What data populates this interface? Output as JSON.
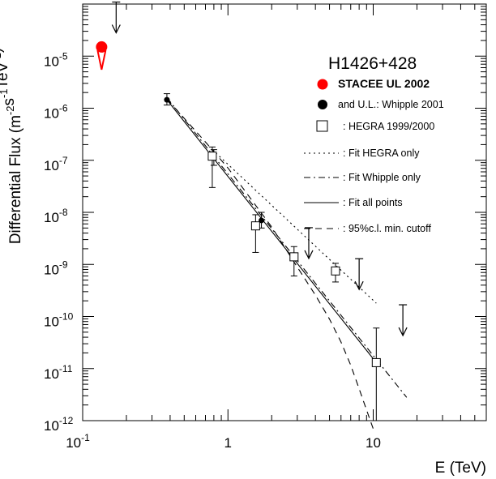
{
  "chart_data": {
    "type": "scatter",
    "title": "H1426+428",
    "xlabel": "E (TeV)",
    "ylabel_main": "Differential Flux (m",
    "ylabel_units": [
      {
        "base": "",
        "exp": "-2"
      },
      {
        "base": "s",
        "exp": "-1"
      },
      {
        "base": "TeV",
        "exp": "-1"
      }
    ],
    "ylabel_close": ")",
    "x_scale": "log",
    "y_scale": "log",
    "xlim": [
      0.1,
      60
    ],
    "ylim": [
      1e-12,
      0.0001
    ],
    "x_ticks": [
      {
        "value": 0.1,
        "base": "10",
        "exp": "-1"
      },
      {
        "value": 1,
        "base": "1",
        "exp": ""
      },
      {
        "value": 10,
        "base": "10",
        "exp": ""
      }
    ],
    "y_ticks": [
      {
        "value": 1e-12,
        "base": "10",
        "exp": "-12"
      },
      {
        "value": 1e-11,
        "base": "10",
        "exp": "-11"
      },
      {
        "value": 1e-10,
        "base": "10",
        "exp": "-10"
      },
      {
        "value": 1e-09,
        "base": "10",
        "exp": "-9"
      },
      {
        "value": 1e-08,
        "base": "10",
        "exp": "-8"
      },
      {
        "value": 1e-07,
        "base": "10",
        "exp": "-7"
      },
      {
        "value": 1e-06,
        "base": "10",
        "exp": "-6"
      },
      {
        "value": 1e-05,
        "base": "10",
        "exp": "-5"
      }
    ],
    "legend": {
      "placement": "top-right",
      "entries": [
        {
          "label": "STACEE UL 2002",
          "style": "red-dot",
          "bold": true
        },
        {
          "label": "and U.L.: Whipple 2001",
          "style": "black-dot"
        },
        {
          "label": ": HEGRA 1999/2000",
          "style": "open-square"
        },
        {
          "label": ": Fit HEGRA only",
          "style": "dotted"
        },
        {
          "label": ": Fit Whipple only",
          "style": "dashdot"
        },
        {
          "label": ": Fit all points",
          "style": "solid"
        },
        {
          "label": ": 95%c.l. min. cutoff",
          "style": "dashed"
        }
      ]
    },
    "series": [
      {
        "name": "STACEE UL 2002",
        "color": "#ff0000",
        "marker": "dot",
        "points": [
          {
            "x": 0.135,
            "y": 1.5e-05
          }
        ],
        "upper_limits": [
          {
            "x": 0.135,
            "y": 5.5e-06
          }
        ]
      },
      {
        "name": "and U.L.: Whipple 2001",
        "color": "#000000",
        "marker": "dot",
        "points": [
          {
            "x": 0.38,
            "y": 1.45e-06,
            "ylo": 1.15e-06,
            "yhi": 1.9e-06
          },
          {
            "x": 0.8,
            "y": 1.15e-07,
            "ylo": 8e-08,
            "yhi": 1.6e-07
          },
          {
            "x": 1.7,
            "y": 7e-09,
            "ylo": 5e-09,
            "yhi": 1e-08
          }
        ],
        "upper_limits": [
          {
            "x": 0.17,
            "y": 2.8e-05
          },
          {
            "x": 3.6,
            "y": 1.3e-09
          },
          {
            "x": 8.0,
            "y": 3.3e-10
          },
          {
            "x": 16.0,
            "y": 4.3e-11
          }
        ]
      },
      {
        "name": "HEGRA 1999/2000",
        "color": "#000000",
        "marker": "open-square",
        "points": [
          {
            "x": 0.78,
            "y": 1.2e-07,
            "ylo": 3e-08,
            "yhi": 1.8e-07
          },
          {
            "x": 1.55,
            "y": 5.5e-09,
            "ylo": 1.7e-09,
            "yhi": 9e-09
          },
          {
            "x": 2.85,
            "y": 1.4e-09,
            "ylo": 6e-10,
            "yhi": 2.2e-09
          },
          {
            "x": 5.5,
            "y": 7.5e-10,
            "ylo": 4.6e-10,
            "yhi": 1.05e-09
          },
          {
            "x": 10.5,
            "y": 1.3e-11,
            "ylo": 1e-12,
            "yhi": 6e-11
          }
        ]
      }
    ],
    "fits": [
      {
        "label": "Fit HEGRA only",
        "style": "dotted",
        "x": [
          0.78,
          10.5
        ],
        "y": [
          1.6e-07,
          1.8e-10
        ]
      },
      {
        "label": "Fit Whipple only",
        "style": "dashdot",
        "x": [
          0.38,
          17
        ],
        "y": [
          1.6e-06,
          2.8e-12
        ]
      },
      {
        "label": "Fit all points",
        "style": "solid",
        "x": [
          0.38,
          10.5
        ],
        "y": [
          1.45e-06,
          1.3e-11
        ]
      },
      {
        "label": "95%c.l. min. cutoff",
        "style": "dashed",
        "x": [
          0.38,
          0.7,
          1.0,
          1.5,
          2.0,
          3.0,
          4.0,
          5.0,
          6.0,
          7.0,
          8.0,
          9.0,
          10.0
        ],
        "y": [
          1.5e-06,
          2.24e-07,
          7.1e-08,
          1.55e-08,
          5.25e-09,
          8.9e-10,
          2.57e-10,
          8.9e-11,
          3.24e-11,
          1.17e-11,
          4.1e-12,
          1.6e-12,
          7e-13
        ]
      }
    ]
  }
}
